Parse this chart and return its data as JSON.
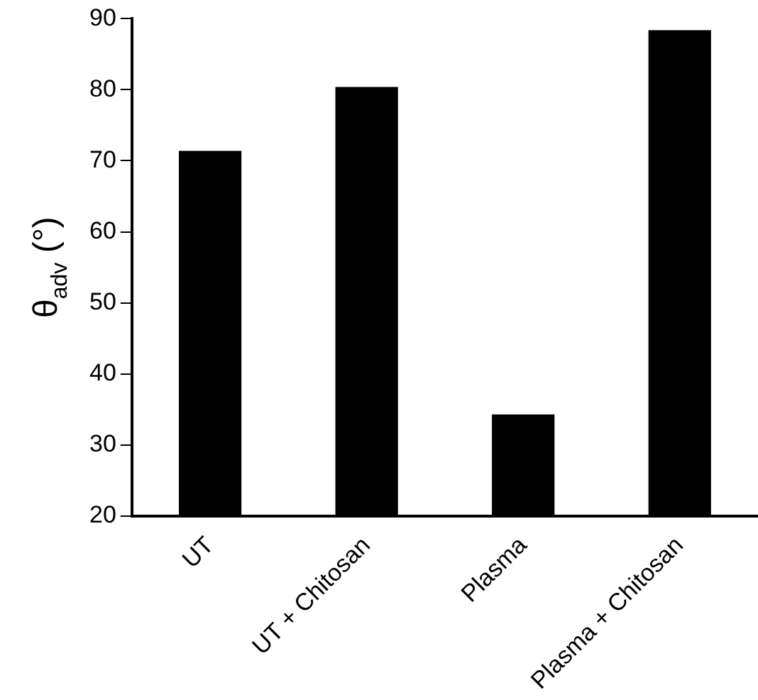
{
  "chart_data": {
    "type": "bar",
    "ylabel": "θ$_{adv}$ (°)",
    "categories": [
      "UT",
      "UT + Chitosan",
      "Plasma",
      "Plasma + Chitosan"
    ],
    "values": [
      71.4,
      80.4,
      34.3,
      88.4
    ],
    "color": "#000000",
    "ylim": [
      20,
      90
    ],
    "yticks": [
      20,
      30,
      40,
      50,
      60,
      70,
      80,
      90
    ],
    "grid": false,
    "legend": false
  }
}
